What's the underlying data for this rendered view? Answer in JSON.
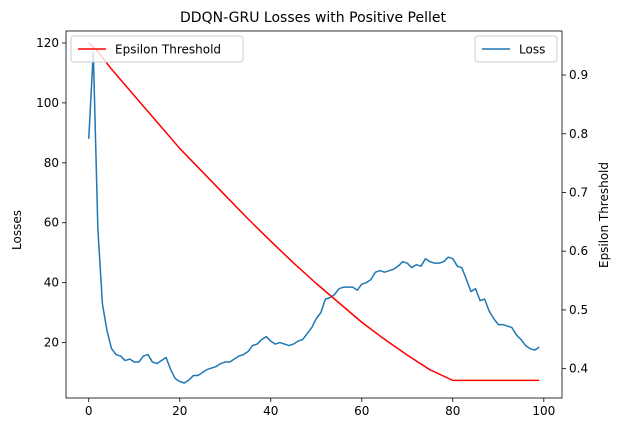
{
  "chart_data": {
    "type": "line",
    "title": "DDQN-GRU Losses with Positive Pellet",
    "xlabel": "",
    "ylabel_left": "Losses",
    "ylabel_right": "Epsilon Threshold",
    "xlim": [
      -5,
      104
    ],
    "ylim_left": [
      1.5,
      124
    ],
    "ylim_right": [
      0.35,
      0.975
    ],
    "x_ticks": [
      0,
      20,
      40,
      60,
      80,
      100
    ],
    "y_ticks_left": [
      20,
      40,
      60,
      80,
      100,
      120
    ],
    "y_ticks_right": [
      0.4,
      0.5,
      0.6,
      0.7,
      0.8,
      0.9
    ],
    "grid": false,
    "series": [
      {
        "name": "Loss",
        "axis": "left",
        "color": "#1f77b4",
        "legend_position": "upper right",
        "x_start": 0,
        "x_step": 1,
        "values": [
          88,
          117,
          58,
          33,
          24,
          18,
          16,
          15.5,
          14,
          14.5,
          13.5,
          13.5,
          15.5,
          16,
          13.5,
          13,
          14,
          15,
          11,
          8,
          7,
          6.5,
          7.5,
          9,
          9,
          10,
          11,
          11.5,
          12,
          13,
          13.5,
          13.5,
          14.5,
          15.5,
          16,
          17,
          19,
          19.5,
          21,
          22,
          20.5,
          19.5,
          20,
          19.5,
          19,
          19.5,
          20.5,
          21,
          23,
          25,
          28,
          30,
          34.5,
          35,
          36,
          38,
          38.5,
          38.5,
          38.5,
          37.5,
          39.5,
          40,
          41,
          43.5,
          44,
          43.5,
          44,
          44.5,
          45.5,
          47,
          46.5,
          45,
          46,
          45.5,
          48,
          47,
          46.5,
          46.5,
          47,
          48.5,
          48,
          45.5,
          45,
          41,
          37,
          38,
          34,
          34.5,
          30.5,
          28,
          26,
          26,
          25.5,
          25,
          22.5,
          21,
          19,
          18,
          17.5,
          18.5
        ]
      },
      {
        "name": "Epsilon Threshold",
        "axis": "right",
        "color": "#ff0000",
        "legend_position": "upper left",
        "x": [
          0,
          2,
          5,
          10,
          15,
          20,
          25,
          30,
          35,
          40,
          45,
          50,
          55,
          60,
          65,
          70,
          75,
          80,
          82,
          99
        ],
        "y": [
          0.955,
          0.94,
          0.91,
          0.865,
          0.82,
          0.775,
          0.735,
          0.695,
          0.655,
          0.617,
          0.58,
          0.545,
          0.512,
          0.479,
          0.45,
          0.423,
          0.398,
          0.38,
          0.38,
          0.38
        ]
      }
    ]
  }
}
